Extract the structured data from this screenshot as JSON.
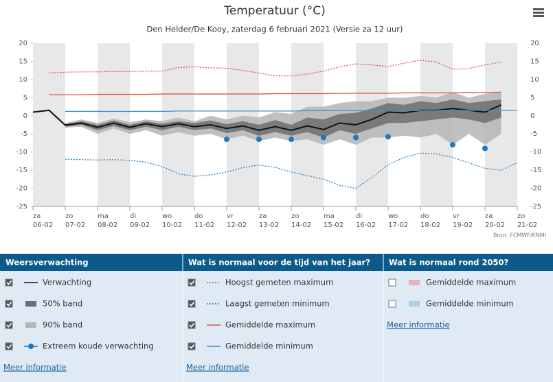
{
  "chart_data": {
    "type": "line",
    "title": "Temperatuur (°C)",
    "subtitle": "Den Helder/De Kooy, zaterdag 6 februari 2021 (Versie za 12 uur)",
    "credit": "Bron: ECMWF/KNMI",
    "weekdays": [
      "za",
      null,
      "zo",
      null,
      "ma",
      null,
      "di",
      null,
      "wo",
      null,
      "do",
      null,
      "vr",
      null,
      "za",
      null,
      "zo",
      null,
      "ma",
      null,
      "di",
      null,
      "wo",
      null,
      "do",
      null,
      "vr",
      null,
      "za",
      null,
      "zo"
    ],
    "dates": [
      "06-02",
      null,
      "07-02",
      null,
      "08-02",
      null,
      "09-02",
      null,
      "10-02",
      null,
      "11-02",
      null,
      "12-02",
      null,
      "13-02",
      null,
      "14-02",
      null,
      "15-02",
      null,
      "16-02",
      null,
      "17-02",
      null,
      "18-02",
      null,
      "19-02",
      null,
      "20-02",
      null,
      "21-02"
    ],
    "ylim": [
      -25,
      20
    ],
    "yticks": [
      20,
      15,
      10,
      5,
      0,
      -5,
      -10,
      -15,
      -20,
      -25
    ],
    "groups": [
      {
        "title": "Weersverwachting",
        "link": "Meer informatie",
        "series": [
          {
            "name": "Verwachting",
            "style": "line",
            "color": "#111111",
            "checked": true,
            "values": [
              1,
              1.5,
              -2.6,
              -2,
              -3.2,
              -2,
              -3.2,
              -2.2,
              -3,
              -2.2,
              -3,
              -2.5,
              -3.5,
              -2.8,
              -4,
              -3,
              -4,
              -2.8,
              -3.8,
              -2,
              -2.5,
              -1,
              1,
              0.8,
              1.5,
              1.5,
              2,
              1.5,
              1,
              3,
              null
            ]
          },
          {
            "name": "50% band",
            "style": "band",
            "color": "#6f6f6f",
            "checked": true,
            "low": [
              null,
              null,
              -3,
              -2.5,
              -4,
              -2.8,
              -4,
              -3,
              -4,
              -3,
              -4,
              -3.5,
              -4.8,
              -4,
              -5.5,
              -4.5,
              -5.5,
              -4.5,
              -6,
              -4,
              -5,
              -3.5,
              -2,
              -2,
              -1.5,
              -1,
              -0.5,
              -1,
              -2,
              -0.5,
              null
            ],
            "high": [
              null,
              null,
              -2.3,
              -1.5,
              -2.5,
              -1.3,
              -2.5,
              -1.5,
              -2.2,
              -1.5,
              -2,
              -1.3,
              -2.3,
              -1.5,
              -2.5,
              -1.2,
              -2.5,
              -0.5,
              -1,
              0.5,
              0.8,
              2,
              3.5,
              3,
              4,
              3.5,
              4.5,
              3.5,
              4,
              4.5,
              null
            ]
          },
          {
            "name": "90% band",
            "style": "band",
            "color": "#b5b5b5",
            "checked": true,
            "low": [
              null,
              null,
              -3.3,
              -3,
              -5,
              -3.5,
              -5,
              -4,
              -5.5,
              -4.5,
              -5.5,
              -5,
              -6.5,
              -5.5,
              -7,
              -6,
              -7,
              -6.5,
              -8,
              -6.5,
              -8,
              -6,
              -6,
              -5.5,
              -6,
              -5,
              -8,
              -5,
              -8,
              -5,
              null
            ],
            "high": [
              null,
              null,
              -2,
              -1,
              -2,
              -0.8,
              -1.8,
              -1,
              -1.5,
              -0.5,
              -1.5,
              0,
              -1,
              0,
              -0.5,
              1,
              0.5,
              2.5,
              2.5,
              3.5,
              4,
              4,
              5,
              5,
              5.5,
              5,
              6.5,
              5,
              6,
              6.5,
              null
            ]
          },
          {
            "name": "Extreem koude verwachting",
            "style": "points",
            "color": "#1f78c1",
            "checked": true,
            "values": [
              null,
              null,
              null,
              null,
              null,
              null,
              null,
              null,
              null,
              null,
              null,
              null,
              -6.5,
              null,
              -6.5,
              null,
              -6.5,
              null,
              -6,
              null,
              -6,
              null,
              -5.8,
              null,
              null,
              null,
              -8,
              null,
              -9,
              null,
              null
            ]
          }
        ]
      },
      {
        "title": "Wat is normaal voor de tijd van het jaar?",
        "link": "Meer informatie",
        "series": [
          {
            "name": "Hoogst gemeten maximum",
            "style": "dotted",
            "color": "#d9534f",
            "checked": true,
            "values": [
              null,
              11.8,
              12,
              12.1,
              12.1,
              12.2,
              12.2,
              12.3,
              12.3,
              13.3,
              13.5,
              13.2,
              13.1,
              12.5,
              11.8,
              11,
              11,
              11.5,
              12.3,
              13.5,
              14.3,
              14,
              13.6,
              14.5,
              15.3,
              14.8,
              12.8,
              13,
              14,
              14.8,
              null
            ]
          },
          {
            "name": "Laagst gemeten minimum",
            "style": "dotted",
            "color": "#2f7fc1",
            "checked": true,
            "values": [
              null,
              null,
              -12,
              -12.1,
              -12.2,
              -12.1,
              -12.3,
              -12.8,
              -14,
              -16,
              -16.7,
              -16.3,
              -15.5,
              -14.3,
              -13.6,
              -14.2,
              -15.5,
              -16.5,
              -17.5,
              -19.2,
              -20,
              -17,
              -13.5,
              -11.5,
              -10.3,
              -10.5,
              -11.5,
              -13,
              -14.5,
              -15,
              -13
            ]
          },
          {
            "name": "Gemiddelde maximum",
            "style": "line",
            "color": "#d9534f",
            "checked": true,
            "values": [
              null,
              5.8,
              5.8,
              5.8,
              5.9,
              5.9,
              5.9,
              5.9,
              6,
              6,
              6,
              6,
              6,
              6,
              6,
              6.1,
              6.1,
              6.1,
              6.1,
              6.2,
              6.2,
              6.2,
              6.2,
              6.3,
              6.3,
              6.3,
              6.3,
              6.4,
              6.4,
              6.5,
              null
            ]
          },
          {
            "name": "Gemiddelde minimum",
            "style": "line",
            "color": "#3a8fd0",
            "checked": true,
            "values": [
              null,
              null,
              1.2,
              1.2,
              1.2,
              1.2,
              1.2,
              1.2,
              1.2,
              1.3,
              1.3,
              1.3,
              1.3,
              1.3,
              1.3,
              1.3,
              1.3,
              1.4,
              1.4,
              1.4,
              1.4,
              1.4,
              1.4,
              1.4,
              1.4,
              1.5,
              1.5,
              1.5,
              1.5,
              1.5,
              1.5
            ]
          }
        ]
      },
      {
        "title": "Wat is normaal rond 2050?",
        "link": "Meer informatie",
        "series": [
          {
            "name": "Gemiddelde maximum",
            "style": "swatch",
            "color": "#e6b3ba",
            "checked": false
          },
          {
            "name": "Gemiddelde minimum",
            "style": "swatch",
            "color": "#a9cfeb",
            "checked": false
          }
        ]
      }
    ]
  }
}
